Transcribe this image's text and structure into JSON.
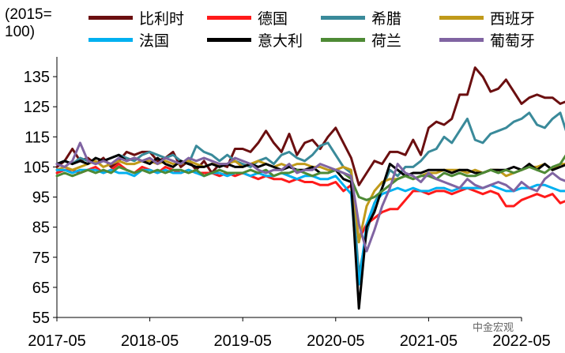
{
  "chart_data": {
    "type": "line",
    "ylabel": "(2015=\n100)",
    "ylim": [
      55,
      140
    ],
    "yticks": [
      55,
      65,
      75,
      85,
      95,
      105,
      115,
      125,
      135
    ],
    "xticks": [
      "2017-05",
      "2018-05",
      "2019-05",
      "2020-05",
      "2021-05",
      "2022-05"
    ],
    "x_start": "2017-05",
    "x_end": "2022-05",
    "grid": false,
    "legend_position": "top",
    "series": [
      {
        "name": "比利时",
        "color": "#6b0f10",
        "values": [
          105,
          107,
          111,
          107,
          108,
          106,
          108,
          105,
          107,
          110,
          109,
          110,
          110,
          107,
          108,
          110,
          105,
          107,
          104,
          107,
          103,
          106,
          105,
          111,
          111,
          110,
          113,
          117,
          113,
          110,
          116,
          109,
          113,
          114,
          111,
          115,
          118,
          113,
          108,
          99,
          103,
          107,
          106,
          110,
          110,
          109,
          114,
          109,
          118,
          120,
          119,
          121,
          129,
          129,
          138,
          135,
          130,
          131,
          134,
          130,
          126,
          128,
          129,
          128,
          128,
          126,
          127
        ]
      },
      {
        "name": "德国",
        "color": "#ff1a1a",
        "values": [
          103,
          104,
          104,
          103,
          104,
          105,
          103,
          104,
          106,
          104,
          103,
          105,
          104,
          103,
          105,
          104,
          103,
          104,
          103,
          103,
          103,
          102,
          103,
          102,
          103,
          102,
          101,
          102,
          101,
          101,
          100,
          101,
          100,
          100,
          99,
          99,
          100,
          97,
          99,
          81,
          86,
          88,
          90,
          91,
          91,
          94,
          97,
          97,
          96,
          97,
          97,
          96,
          97,
          98,
          97,
          96,
          97,
          96,
          92,
          92,
          94,
          95,
          96,
          95,
          96,
          93,
          94,
          95
        ]
      },
      {
        "name": "希腊",
        "color": "#3a8a9a",
        "values": [
          106,
          107,
          106,
          108,
          107,
          106,
          107,
          108,
          109,
          108,
          107,
          109,
          110,
          109,
          108,
          109,
          107,
          106,
          112,
          110,
          109,
          107,
          109,
          107,
          106,
          105,
          107,
          108,
          106,
          109,
          110,
          108,
          107,
          109,
          112,
          113,
          109,
          105,
          103,
          69,
          83,
          93,
          98,
          104,
          102,
          105,
          105,
          107,
          110,
          111,
          115,
          113,
          117,
          121,
          114,
          113,
          116,
          117,
          118,
          120,
          121,
          123,
          119,
          118,
          121,
          123,
          115,
          117
        ]
      },
      {
        "name": "西班牙",
        "color": "#c09a1a",
        "values": [
          104,
          105,
          104,
          105,
          106,
          107,
          105,
          106,
          107,
          106,
          106,
          107,
          107,
          106,
          107,
          106,
          106,
          107,
          106,
          105,
          106,
          106,
          106,
          107,
          105,
          106,
          107,
          106,
          105,
          106,
          105,
          106,
          106,
          105,
          105,
          104,
          104,
          105,
          104,
          80,
          92,
          97,
          100,
          101,
          101,
          102,
          101,
          102,
          103,
          103,
          104,
          104,
          104,
          103,
          104,
          103,
          104,
          104,
          102,
          103,
          104,
          105,
          105,
          106,
          104,
          106,
          106
        ]
      },
      {
        "name": "法国",
        "color": "#00b0f0",
        "values": [
          104,
          104,
          103,
          104,
          104,
          104,
          103,
          104,
          103,
          103,
          102,
          104,
          104,
          103,
          104,
          103,
          103,
          104,
          103,
          102,
          103,
          103,
          102,
          103,
          103,
          102,
          103,
          102,
          102,
          103,
          102,
          101,
          102,
          102,
          101,
          101,
          102,
          99,
          96,
          66,
          86,
          93,
          96,
          97,
          98,
          97,
          98,
          97,
          97,
          98,
          98,
          97,
          98,
          98,
          98,
          98,
          99,
          98,
          97,
          97,
          98,
          98,
          99,
          99,
          98,
          97,
          97
        ]
      },
      {
        "name": "意大利",
        "color": "#000000",
        "values": [
          106,
          107,
          106,
          107,
          106,
          108,
          107,
          108,
          109,
          107,
          108,
          107,
          106,
          108,
          106,
          105,
          107,
          106,
          105,
          105,
          106,
          105,
          106,
          105,
          105,
          106,
          105,
          106,
          105,
          104,
          105,
          104,
          104,
          105,
          103,
          103,
          104,
          101,
          100,
          58,
          85,
          90,
          98,
          106,
          104,
          102,
          103,
          103,
          104,
          104,
          104,
          103,
          104,
          104,
          103,
          103,
          104,
          104,
          104,
          105,
          104,
          106,
          104,
          106,
          104,
          105,
          106,
          105
        ]
      },
      {
        "name": "荷兰",
        "color": "#4e8a35",
        "values": [
          102,
          103,
          102,
          103,
          104,
          103,
          104,
          103,
          105,
          104,
          103,
          104,
          103,
          104,
          103,
          104,
          104,
          103,
          104,
          102,
          103,
          104,
          103,
          103,
          103,
          104,
          103,
          104,
          102,
          103,
          103,
          104,
          103,
          102,
          103,
          103,
          104,
          103,
          101,
          95,
          94,
          95,
          97,
          99,
          101,
          102,
          101,
          102,
          102,
          101,
          103,
          102,
          103,
          102,
          102,
          103,
          104,
          103,
          104,
          103,
          104,
          105,
          104,
          103,
          105,
          106,
          110
        ]
      },
      {
        "name": "葡萄牙",
        "color": "#8064a2",
        "values": [
          106,
          105,
          107,
          113,
          107,
          106,
          107,
          106,
          108,
          107,
          108,
          107,
          108,
          106,
          108,
          107,
          106,
          108,
          107,
          108,
          107,
          106,
          106,
          108,
          107,
          106,
          104,
          103,
          104,
          104,
          106,
          103,
          104,
          104,
          106,
          105,
          104,
          103,
          102,
          86,
          77,
          84,
          92,
          98,
          106,
          103,
          102,
          100,
          103,
          101,
          100,
          99,
          98,
          101,
          99,
          98,
          99,
          100,
          99,
          97,
          100,
          98,
          97,
          101,
          103,
          101,
          100
        ]
      }
    ]
  },
  "watermark": "中金宏观"
}
